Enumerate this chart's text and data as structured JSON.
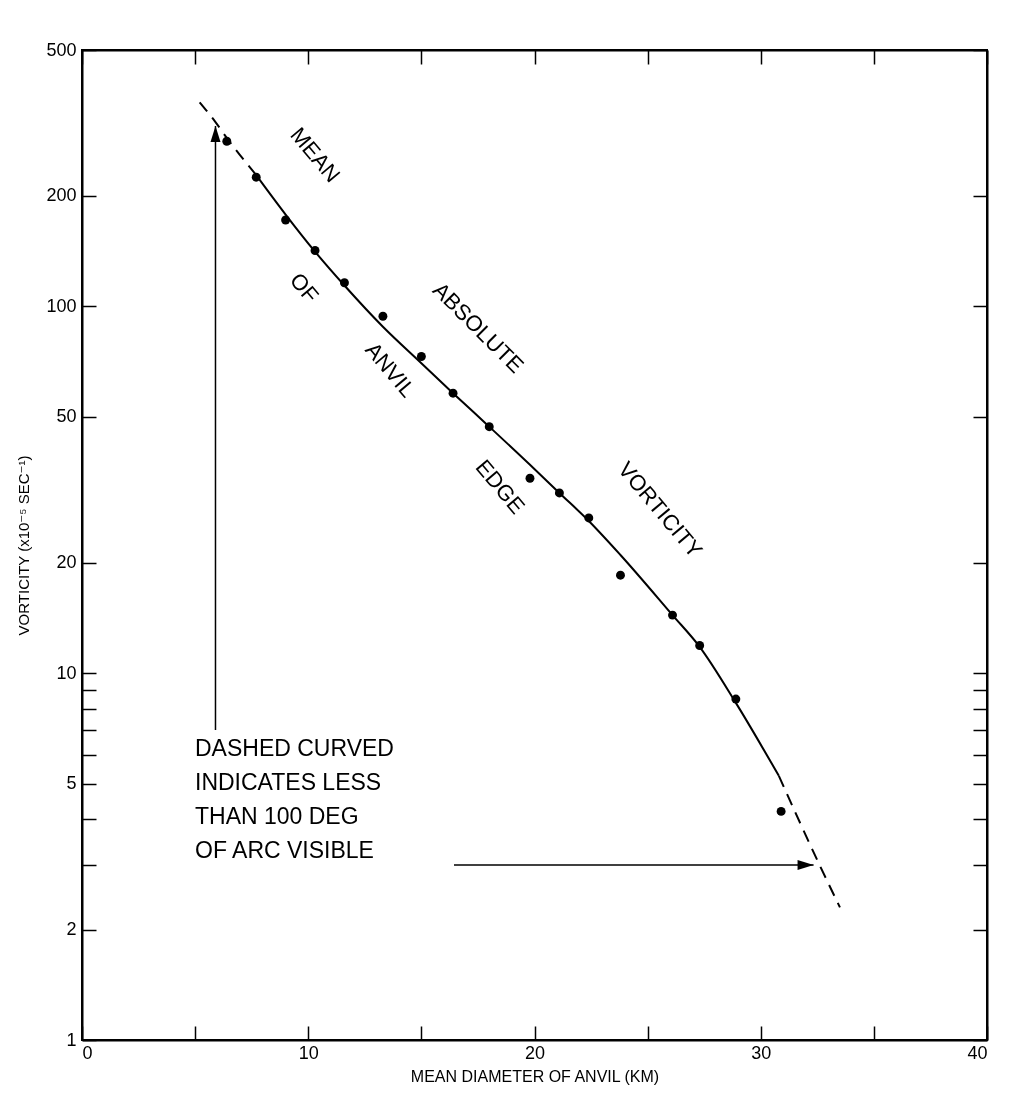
{
  "chart_data": {
    "type": "scatter",
    "xlabel": "MEAN DIAMETER OF ANVIL (KM)",
    "ylabel": "VORTICITY (x10⁻⁵ SEC⁻¹)",
    "log": "y",
    "xlim": [
      0,
      40
    ],
    "xticks": [
      0,
      {
        "value": 5,
        "label": null
      },
      10,
      {
        "value": 15,
        "label": null
      },
      20,
      {
        "value": 25,
        "label": null
      },
      30,
      {
        "value": 35,
        "label": null
      },
      40
    ],
    "ylim": [
      1,
      500
    ],
    "yticks": [
      1,
      2,
      {
        "value": 3,
        "label": null
      },
      {
        "value": 4,
        "label": null
      },
      5,
      {
        "value": 6,
        "label": null
      },
      {
        "value": 7,
        "label": null
      },
      {
        "value": 8,
        "label": null
      },
      {
        "value": 9,
        "label": null
      },
      10,
      20,
      50,
      100,
      200,
      500
    ],
    "grid": false,
    "series": [
      {
        "marker": "circle",
        "color": "#000000",
        "x": [
          6.4,
          7.7,
          9.0,
          10.3,
          11.6,
          13.3,
          15.0,
          16.4,
          18.0,
          19.8,
          21.1,
          22.4,
          23.8,
          26.1,
          27.3,
          28.9,
          30.9
        ],
        "values": [
          282,
          225,
          172,
          142,
          116,
          94,
          73,
          58,
          47,
          34,
          31,
          26.5,
          18.5,
          14.4,
          11.9,
          8.5,
          4.2
        ]
      },
      {
        "type": "line",
        "line_style": "solid",
        "color": "#000000",
        "x": [
          7.7,
          9.0,
          10.3,
          11.6,
          13.3,
          15.0,
          16.4,
          18.0,
          19.8,
          21.1,
          22.4,
          23.8,
          26.1,
          27.3,
          28.9,
          30.8
        ],
        "values": [
          228,
          178,
          141,
          114,
          88,
          70,
          58,
          47,
          37,
          31,
          26,
          21,
          14.4,
          11.8,
          8.3,
          5.25
        ]
      },
      {
        "type": "line",
        "line_style": "dashed",
        "color": "#000000",
        "x": [
          5.2,
          5.9,
          6.4,
          7.7
        ],
        "values": [
          360,
          318,
          288,
          228
        ]
      },
      {
        "type": "line",
        "line_style": "dashed",
        "color": "#000000",
        "x": [
          30.8,
          32.6,
          33.5
        ],
        "values": [
          5.25,
          3.0,
          2.3
        ]
      }
    ],
    "annotations": [
      "MEAN",
      "OF",
      "ANVIL",
      "EDGE",
      "ABSOLUTE",
      "VORTICITY",
      "DASHED CURVED\nINDICATES LESS\nTHAN 100 DEG\nOF ARC VISIBLE"
    ]
  }
}
